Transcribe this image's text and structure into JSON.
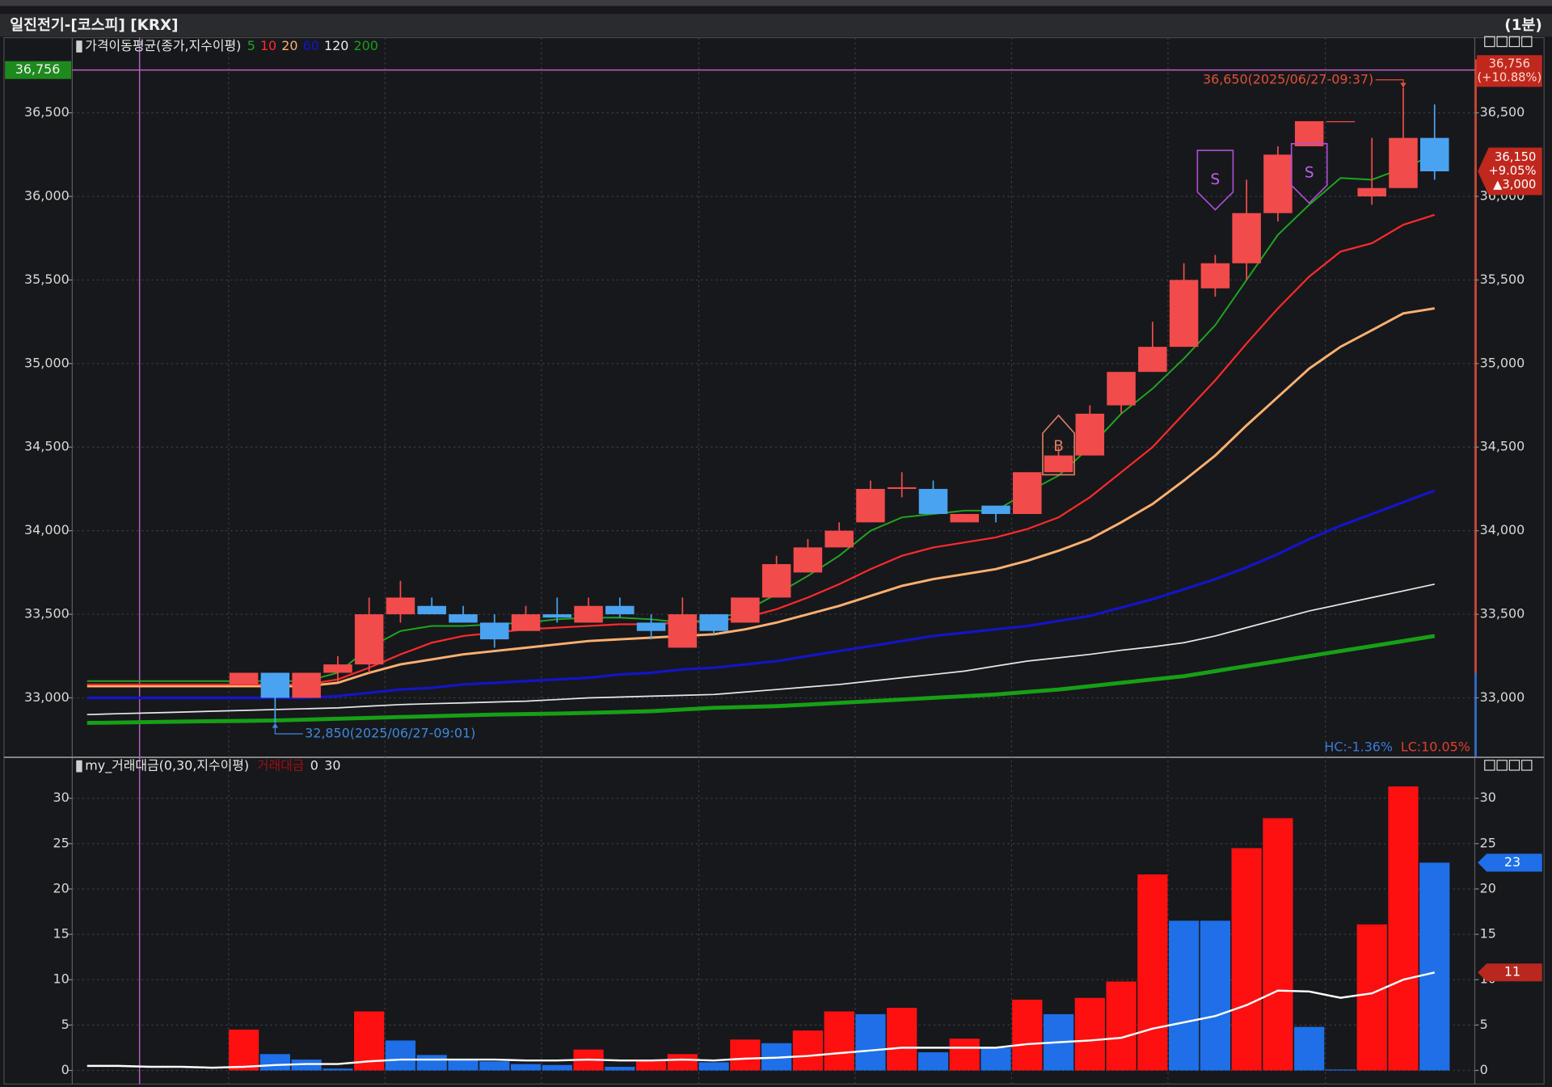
{
  "window": {
    "title": "일진전기-[코스피] [KRX]",
    "interval": "(1분)"
  },
  "chart_data": [
    {
      "type": "candlestick",
      "legend_title": "가격이동평균(종가,지수이평)",
      "open": [
        null,
        null,
        null,
        null,
        null,
        33080,
        33150,
        33000,
        33150,
        33200,
        33500,
        33550,
        33500,
        33450,
        33400,
        33500,
        33450,
        33550,
        33450,
        33300,
        33500,
        33450,
        33600,
        33750,
        33900,
        34050,
        34250,
        34250,
        34050,
        34150,
        34100,
        34350,
        34450,
        34750,
        34950,
        35100,
        35450,
        35600,
        35900,
        36300,
        36450,
        36000,
        36050,
        36350
      ],
      "high": [
        null,
        null,
        null,
        null,
        null,
        33150,
        33150,
        33150,
        33250,
        33600,
        33700,
        33600,
        33550,
        33500,
        33550,
        33600,
        33600,
        33600,
        33500,
        33600,
        33500,
        33600,
        33850,
        33950,
        34050,
        34300,
        34350,
        34300,
        34100,
        34150,
        34350,
        34500,
        34750,
        34950,
        35250,
        35600,
        35650,
        36100,
        36300,
        36450,
        36450,
        36350,
        36650,
        36550
      ],
      "low": [
        null,
        null,
        null,
        null,
        null,
        33080,
        32850,
        33000,
        33100,
        33150,
        33450,
        33500,
        33450,
        33300,
        33400,
        33450,
        33450,
        33480,
        33350,
        33300,
        33380,
        33450,
        33600,
        33750,
        33900,
        34050,
        34200,
        34100,
        34050,
        34050,
        34100,
        34350,
        34450,
        34700,
        34950,
        35100,
        35400,
        35500,
        35850,
        36300,
        36450,
        35950,
        36050,
        36100
      ],
      "close": [
        null,
        null,
        null,
        null,
        null,
        33150,
        33000,
        33150,
        33200,
        33500,
        33600,
        33500,
        33450,
        33350,
        33500,
        33480,
        33550,
        33500,
        33400,
        33500,
        33400,
        33600,
        33800,
        33900,
        34000,
        34250,
        34260,
        34100,
        34100,
        34100,
        34350,
        34450,
        34700,
        34950,
        35100,
        35500,
        35600,
        35900,
        36250,
        36450,
        36450,
        36050,
        36350,
        36150
      ],
      "up_color": "#f24b4b",
      "down_color": "#4aa3f0",
      "series": [
        {
          "name": "5",
          "color": "#1fa61f",
          "line_width": 1.6,
          "values": [
            33100,
            33100,
            33100,
            33100,
            33100,
            33100,
            33100,
            33100,
            33150,
            33300,
            33400,
            33430,
            33430,
            33440,
            33450,
            33470,
            33480,
            33480,
            33470,
            33450,
            33470,
            33520,
            33620,
            33730,
            33850,
            34000,
            34080,
            34100,
            34120,
            34120,
            34230,
            34330,
            34500,
            34700,
            34850,
            35030,
            35230,
            35500,
            35770,
            35950,
            36110,
            36100,
            36170,
            36250
          ]
        },
        {
          "name": "10",
          "color": "#ff2a2a",
          "line_width": 1.8,
          "values": [
            33080,
            33080,
            33080,
            33080,
            33080,
            33080,
            33080,
            33080,
            33110,
            33180,
            33260,
            33330,
            33370,
            33390,
            33410,
            33420,
            33430,
            33440,
            33440,
            33450,
            33460,
            33480,
            33530,
            33600,
            33680,
            33770,
            33850,
            33900,
            33930,
            33960,
            34010,
            34080,
            34200,
            34350,
            34500,
            34700,
            34900,
            35120,
            35330,
            35520,
            35670,
            35720,
            35830,
            35890
          ]
        },
        {
          "name": "20",
          "color": "#ffb070",
          "line_width": 2.4,
          "values": [
            33070,
            33070,
            33070,
            33070,
            33070,
            33070,
            33070,
            33070,
            33090,
            33150,
            33200,
            33230,
            33260,
            33280,
            33300,
            33320,
            33340,
            33350,
            33360,
            33370,
            33380,
            33410,
            33450,
            33500,
            33550,
            33610,
            33670,
            33710,
            33740,
            33770,
            33820,
            33880,
            33950,
            34050,
            34160,
            34300,
            34450,
            34630,
            34800,
            34970,
            35100,
            35200,
            35300,
            35330
          ]
        },
        {
          "name": "60",
          "color": "#1414c8",
          "line_width": 2.6,
          "values": [
            33000,
            33000,
            33000,
            33000,
            33000,
            33000,
            33000,
            33000,
            33010,
            33030,
            33050,
            33060,
            33080,
            33090,
            33100,
            33110,
            33120,
            33140,
            33150,
            33170,
            33180,
            33200,
            33220,
            33250,
            33280,
            33310,
            33340,
            33370,
            33390,
            33410,
            33430,
            33460,
            33490,
            33540,
            33590,
            33650,
            33710,
            33780,
            33860,
            33950,
            34030,
            34100,
            34170,
            34240
          ]
        },
        {
          "name": "120",
          "color": "#e8e8e8",
          "line_width": 1.4,
          "values": [
            32900,
            32905,
            32910,
            32915,
            32920,
            32925,
            32930,
            32935,
            32940,
            32950,
            32960,
            32965,
            32970,
            32975,
            32980,
            32990,
            33000,
            33005,
            33010,
            33015,
            33020,
            33035,
            33050,
            33065,
            33080,
            33100,
            33120,
            33140,
            33160,
            33190,
            33220,
            33240,
            33260,
            33285,
            33305,
            33330,
            33370,
            33420,
            33470,
            33520,
            33560,
            33600,
            33640,
            33680
          ]
        },
        {
          "name": "200",
          "color": "#16a016",
          "line_width": 4,
          "values": [
            32850,
            32852,
            32855,
            32858,
            32860,
            32862,
            32865,
            32870,
            32875,
            32880,
            32885,
            32890,
            32895,
            32900,
            32903,
            32906,
            32910,
            32915,
            32920,
            32930,
            32940,
            32945,
            32950,
            32960,
            32970,
            32980,
            32990,
            33000,
            33010,
            33020,
            33035,
            33050,
            33070,
            33090,
            33110,
            33130,
            33160,
            33190,
            33220,
            33250,
            33280,
            33310,
            33340,
            33370
          ]
        }
      ],
      "ylim": [
        32650,
        36950
      ],
      "yticks": [
        {
          "value": 33000,
          "label": "33,000"
        },
        {
          "value": 33500,
          "label": "33,500"
        },
        {
          "value": 34000,
          "label": "34,000"
        },
        {
          "value": 34500,
          "label": "34,500"
        },
        {
          "value": 35000,
          "label": "35,000"
        },
        {
          "value": 35500,
          "label": "35,500"
        },
        {
          "value": 36000,
          "label": "36,000"
        },
        {
          "value": 36500,
          "label": "36,500"
        }
      ],
      "grid": true,
      "limit_line": {
        "value": 36756,
        "label": "36,756",
        "change": "(+10.88%)",
        "color": "#c060c0"
      },
      "current_price": {
        "value": 36150,
        "label": "36,150",
        "change": "+9.05%",
        "diff": "▲3,000"
      },
      "annotations": [
        {
          "text": "36,650(2025/06/27-09:37)",
          "index": 42,
          "at": "high",
          "color": "#e0503a"
        },
        {
          "text": "32,850(2025/06/27-09:01)",
          "index": 6,
          "at": "low",
          "color": "#3a8ad8"
        }
      ],
      "signals": [
        {
          "label": "S",
          "side": "sell",
          "index": 36,
          "price": 35920
        },
        {
          "label": "S",
          "side": "sell",
          "index": 39,
          "price": 35960
        },
        {
          "label": "B",
          "side": "buy",
          "index": 31,
          "price": 34690
        }
      ],
      "footer": [
        {
          "text": "HC:-1.36%",
          "color": "#3a7ad8"
        },
        {
          "text": "LC:10.05%",
          "color": "#e0402a"
        }
      ]
    },
    {
      "type": "bar",
      "legend_title": "my_거래대금(0,30,지수이평)",
      "legend_extra": "0",
      "series": [
        {
          "name": "거래대금",
          "color": "#9a1010",
          "values": [
            null,
            null,
            null,
            null,
            null,
            4.5,
            1.8,
            1.2,
            0.2,
            6.5,
            3.3,
            1.7,
            1.1,
            1.0,
            0.7,
            0.6,
            2.3,
            0.4,
            1.2,
            1.8,
            0.9,
            3.4,
            3.0,
            4.4,
            6.5,
            6.2,
            6.9,
            2.0,
            3.5,
            2.5,
            7.8,
            6.2,
            8.0,
            9.8,
            21.6,
            16.5,
            16.5,
            24.5,
            27.8,
            4.8,
            0.1,
            16.1,
            31.3,
            22.9
          ],
          "colors": [
            null,
            null,
            null,
            null,
            null,
            "#ff1010",
            "#1e6fe8",
            "#1e6fe8",
            "#1e6fe8",
            "#ff1010",
            "#1e6fe8",
            "#1e6fe8",
            "#1e6fe8",
            "#1e6fe8",
            "#1e6fe8",
            "#1e6fe8",
            "#ff1010",
            "#1e6fe8",
            "#ff1010",
            "#ff1010",
            "#1e6fe8",
            "#ff1010",
            "#1e6fe8",
            "#ff1010",
            "#ff1010",
            "#1e6fe8",
            "#ff1010",
            "#1e6fe8",
            "#ff1010",
            "#1e6fe8",
            "#ff1010",
            "#1e6fe8",
            "#ff1010",
            "#ff1010",
            "#ff1010",
            "#1e6fe8",
            "#1e6fe8",
            "#ff1010",
            "#ff1010",
            "#1e6fe8",
            "#1e6fe8",
            "#ff1010",
            "#ff1010",
            "#1e6fe8"
          ]
        },
        {
          "name": "30",
          "type": "line",
          "color": "#ffffff",
          "values": [
            0.5,
            0.5,
            0.4,
            0.4,
            0.3,
            0.4,
            0.6,
            0.7,
            0.7,
            1.0,
            1.2,
            1.2,
            1.2,
            1.2,
            1.1,
            1.1,
            1.2,
            1.1,
            1.1,
            1.2,
            1.1,
            1.3,
            1.4,
            1.6,
            1.9,
            2.2,
            2.5,
            2.5,
            2.5,
            2.5,
            2.9,
            3.1,
            3.3,
            3.6,
            4.6,
            5.3,
            6.0,
            7.2,
            8.8,
            8.7,
            8.0,
            8.5,
            10.0,
            10.8
          ]
        }
      ],
      "ylim": [
        -1.5,
        34.4
      ],
      "yticks": [
        0,
        5,
        10,
        15,
        20,
        25,
        30
      ],
      "grid": true,
      "tags": [
        {
          "value": 22.9,
          "label": "23",
          "color": "#1e6fe8"
        },
        {
          "value": 10.8,
          "label": "11",
          "color": "#b8281e"
        }
      ]
    }
  ]
}
